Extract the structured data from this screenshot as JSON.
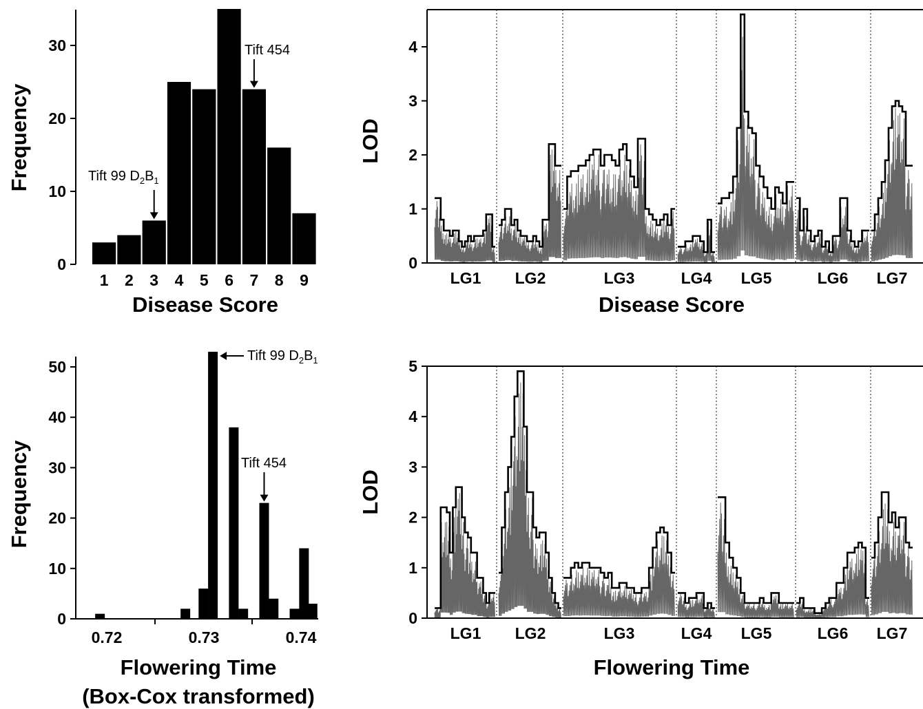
{
  "chart_data": [
    {
      "type": "bar",
      "xlabel": "Disease Score",
      "ylabel": "Frequency",
      "categories": [
        "1",
        "2",
        "3",
        "4",
        "5",
        "6",
        "7",
        "8",
        "9"
      ],
      "values": [
        3,
        4,
        6,
        25,
        24,
        35,
        24,
        16,
        7
      ],
      "ylim": [
        0,
        35
      ],
      "yticks": [
        "0",
        "10",
        "20",
        "30"
      ],
      "annotations": [
        {
          "label": "Tift 99 D",
          "sub": "2",
          "label2": "B",
          "sub2": "1",
          "category": "3"
        },
        {
          "label": "Tift 454",
          "sub": "",
          "label2": "",
          "sub2": "",
          "category": "7"
        }
      ]
    },
    {
      "type": "line",
      "xlabel": "Disease Score",
      "ylabel": "LOD",
      "ylim": [
        0,
        4.7
      ],
      "yticks": [
        "0",
        "1",
        "2",
        "3",
        "4"
      ],
      "linkage_groups": [
        "LG1",
        "LG2",
        "LG3",
        "LG4",
        "LG5",
        "LG6",
        "LG7"
      ],
      "series": [
        {
          "values": [
            [
              1.2,
              1.2,
              0.8,
              0.6,
              0.6,
              0.5,
              0.6,
              0.6,
              0.4,
              0.3,
              0.4,
              0.5,
              0.4,
              0.5,
              0.5,
              0.5,
              0.6,
              0.9,
              0.9,
              0.3
            ],
            [
              0.7,
              0.8,
              1.0,
              1.0,
              0.7,
              0.8,
              0.6,
              0.5,
              0.5,
              0.4,
              0.4,
              0.5,
              0.4,
              0.3,
              0.8,
              0.8,
              2.2,
              2.2,
              1.8,
              1.8
            ],
            [
              1.0,
              1.6,
              1.7,
              1.7,
              1.8,
              1.8,
              1.9,
              2.0,
              2.1,
              2.1,
              1.8,
              2.0,
              2.0,
              1.9,
              1.8,
              2.1,
              2.2,
              1.9,
              1.6,
              1.4,
              2.3,
              2.3,
              1.0,
              0.9,
              0.8,
              0.7,
              0.8,
              0.9,
              0.7,
              1.0
            ],
            [
              0.3,
              0.3,
              0.4,
              0.4,
              0.5,
              0.5,
              0.4,
              0.2,
              0.8,
              0.2
            ],
            [
              1.1,
              1.2,
              1.2,
              1.3,
              1.6,
              2.5,
              4.6,
              2.8,
              2.5,
              2.4,
              1.8,
              1.6,
              1.4,
              1.2,
              1.0,
              1.4,
              1.3,
              1.1,
              1.5,
              1.5
            ],
            [
              1.2,
              0.6,
              1.0,
              0.6,
              0.4,
              0.5,
              0.6,
              0.3,
              0.4,
              0.2,
              0.5,
              0.5,
              1.2,
              1.2,
              0.6,
              0.4,
              0.3,
              0.4,
              0.6,
              0.6
            ],
            [
              0.6,
              0.9,
              1.2,
              1.5,
              1.9,
              2.5,
              2.9,
              3.0,
              2.9,
              2.8,
              1.8,
              1.8
            ]
          ]
        }
      ]
    },
    {
      "type": "bar",
      "xlabel": "Flowering Time",
      "xlabel2": "(Box-Cox transformed)",
      "ylabel": "Frequency",
      "x": [
        0.7186,
        0.7276,
        0.7295,
        0.7305,
        0.7327,
        0.7337,
        0.7359,
        0.7369,
        0.7391,
        0.7401,
        0.741
      ],
      "values": [
        1,
        2,
        6,
        53,
        38,
        2,
        23,
        4,
        2,
        14,
        3
      ],
      "xlim": [
        0.7175,
        0.7416
      ],
      "ylim": [
        0,
        55
      ],
      "xticks": [
        "0.72",
        "0.73",
        "0.74"
      ],
      "yticks": [
        "0",
        "10",
        "20",
        "30",
        "40",
        "50"
      ],
      "annotations": [
        {
          "label": "Tift 99 D",
          "sub": "2",
          "label2": "B",
          "sub2": "1",
          "x": 0.7305
        },
        {
          "label": "Tift 454",
          "sub": "",
          "label2": "",
          "sub2": "",
          "x": 0.7359
        }
      ]
    },
    {
      "type": "line",
      "xlabel": "Flowering Time",
      "ylabel": "LOD",
      "ylim": [
        0,
        5
      ],
      "yticks": [
        "0",
        "1",
        "2",
        "3",
        "4",
        "5"
      ],
      "linkage_groups": [
        "LG1",
        "LG2",
        "LG3",
        "LG4",
        "LG5",
        "LG6",
        "LG7"
      ],
      "series": [
        {
          "values": [
            [
              0.2,
              0.2,
              2.2,
              2.2,
              2.1,
              1.3,
              2.2,
              2.6,
              2.6,
              2.0,
              1.7,
              1.6,
              1.3,
              1.3,
              0.8,
              0.8,
              0.5,
              0.3,
              0.5,
              0.5
            ],
            [
              0.9,
              1.8,
              2.5,
              3.0,
              3.6,
              4.4,
              4.9,
              4.9,
              3.8,
              2.5,
              2.5,
              1.8,
              1.6,
              1.7,
              1.7,
              1.3,
              0.8,
              0.5,
              0.3,
              0.2
            ],
            [
              0.8,
              0.8,
              1.0,
              1.1,
              1.0,
              1.1,
              1.1,
              1.0,
              1.0,
              1.0,
              0.9,
              0.8,
              0.9,
              0.6,
              0.6,
              0.7,
              0.7,
              0.6,
              0.6,
              0.5,
              0.5,
              0.6,
              0.6,
              1.0,
              1.4,
              1.7,
              1.8,
              1.7,
              1.3,
              0.9
            ],
            [
              0.5,
              0.5,
              0.3,
              0.4,
              0.4,
              0.5,
              0.5,
              0.2,
              0.3,
              0.2
            ],
            [
              2.4,
              2.4,
              1.5,
              1.2,
              1.0,
              0.8,
              0.5,
              0.3,
              0.3,
              0.3,
              0.3,
              0.4,
              0.3,
              0.3,
              0.5,
              0.5,
              0.3,
              0.3,
              0.3,
              0.3
            ],
            [
              0.3,
              0.4,
              0.2,
              0.2,
              0.2,
              0.1,
              0.1,
              0.2,
              0.3,
              0.4,
              0.4,
              0.7,
              0.7,
              1.0,
              1.3,
              1.3,
              1.4,
              1.5,
              1.4,
              0.4
            ],
            [
              1.2,
              1.5,
              2.0,
              2.5,
              2.5,
              1.9,
              2.1,
              1.8,
              2.0,
              2.0,
              1.5,
              1.4
            ]
          ]
        }
      ]
    }
  ]
}
